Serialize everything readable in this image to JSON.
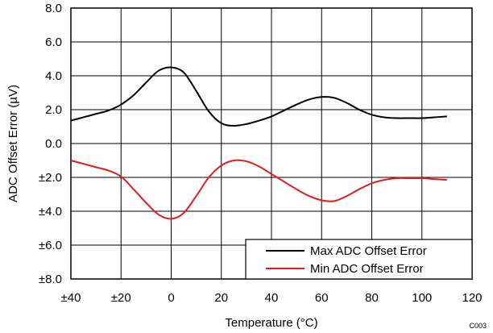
{
  "chart_data": {
    "type": "line",
    "title": "",
    "xlabel": "Temperature (°C)",
    "ylabel": "ADC Offset Error (µV)",
    "xlim": [
      -40,
      120
    ],
    "ylim": [
      -8,
      8
    ],
    "x_ticks": [
      -40,
      -20,
      0,
      20,
      40,
      60,
      80,
      100,
      120
    ],
    "x_tick_labels": [
      "±40",
      "±20",
      "0",
      "20",
      "40",
      "60",
      "80",
      "100",
      "120"
    ],
    "y_ticks": [
      8,
      6,
      4,
      2,
      0,
      -2,
      -4,
      -6,
      -8
    ],
    "y_tick_labels": [
      "8.0",
      "6.0",
      "4.0",
      "2.0",
      "0.0",
      "±2.0",
      "±4.0",
      "±6.0",
      "±8.0"
    ],
    "grid": true,
    "legend_position": "bottom-right",
    "series": [
      {
        "name": "Max ADC Offset Error",
        "color": "#000000",
        "x": [
          -40,
          -35,
          -30,
          -25,
          -20,
          -15,
          -10,
          -5,
          0,
          5,
          10,
          15,
          20,
          25,
          30,
          35,
          40,
          45,
          50,
          55,
          60,
          65,
          70,
          75,
          80,
          85,
          90,
          95,
          100,
          105,
          110
        ],
        "y": [
          1.35,
          1.55,
          1.75,
          1.95,
          2.3,
          2.85,
          3.6,
          4.3,
          4.5,
          4.2,
          3.1,
          1.9,
          1.2,
          1.05,
          1.15,
          1.35,
          1.6,
          1.95,
          2.3,
          2.6,
          2.75,
          2.7,
          2.4,
          2.0,
          1.7,
          1.55,
          1.5,
          1.5,
          1.5,
          1.55,
          1.6
        ]
      },
      {
        "name": "Min ADC Offset Error",
        "color": "#e31a1c",
        "x": [
          -40,
          -35,
          -30,
          -25,
          -20,
          -15,
          -10,
          -5,
          0,
          5,
          10,
          15,
          20,
          25,
          30,
          35,
          40,
          45,
          50,
          55,
          60,
          65,
          70,
          75,
          80,
          85,
          90,
          95,
          100,
          105,
          110
        ],
        "y": [
          -1.0,
          -1.2,
          -1.4,
          -1.6,
          -1.95,
          -2.7,
          -3.5,
          -4.2,
          -4.45,
          -4.1,
          -3.1,
          -2.0,
          -1.3,
          -1.0,
          -1.05,
          -1.35,
          -1.8,
          -2.25,
          -2.7,
          -3.1,
          -3.35,
          -3.4,
          -3.1,
          -2.7,
          -2.35,
          -2.15,
          -2.05,
          -2.05,
          -2.05,
          -2.1,
          -2.15
        ]
      }
    ]
  },
  "figure_code": "C003"
}
